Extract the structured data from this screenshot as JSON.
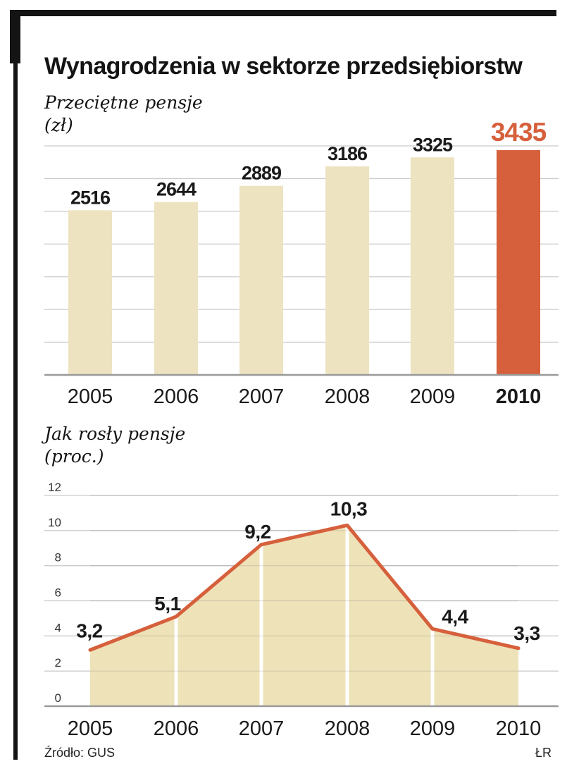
{
  "title": "Wynagrodzenia w sektorze przedsiębiorstw",
  "footer": {
    "source": "Źródło: GUS",
    "credit": "ŁR"
  },
  "colors": {
    "accent": "#d6603c",
    "bar_fill": "#eee3c0",
    "area_fill": "#eddfb3",
    "grid": "#cbcbcb",
    "axis": "#9a9a9a",
    "text": "#1a1a1a",
    "tick_text": "#333333",
    "frame": "#141414"
  },
  "chart_data": [
    {
      "type": "bar",
      "title": "Przeciętne pensje",
      "unit_label": "(zł)",
      "categories": [
        "2005",
        "2006",
        "2007",
        "2008",
        "2009",
        "2010"
      ],
      "values": [
        2516,
        2644,
        2889,
        3186,
        3325,
        3435
      ],
      "value_labels": [
        "2516",
        "2644",
        "2889",
        "3186",
        "3325",
        "3435"
      ],
      "highlight_index": 5,
      "ylim": [
        0,
        3500
      ],
      "grid_step": 500,
      "grid": true,
      "y_axis_labels_visible": false,
      "legend": false
    },
    {
      "type": "area",
      "title": "Jak rosły pensje",
      "unit_label": "(proc.)",
      "categories": [
        "2005",
        "2006",
        "2007",
        "2008",
        "2009",
        "2010"
      ],
      "values": [
        3.2,
        5.1,
        9.2,
        10.3,
        4.4,
        3.3
      ],
      "value_labels": [
        "3,2",
        "5,1",
        "9,2",
        "10,3",
        "4,4",
        "3,3"
      ],
      "ylim": [
        0,
        12
      ],
      "yticks": [
        0,
        2,
        4,
        6,
        8,
        10,
        12
      ],
      "ytick_labels": [
        "0",
        "2",
        "4",
        "6",
        "8",
        "10",
        "12"
      ],
      "grid": true,
      "legend": false
    }
  ]
}
